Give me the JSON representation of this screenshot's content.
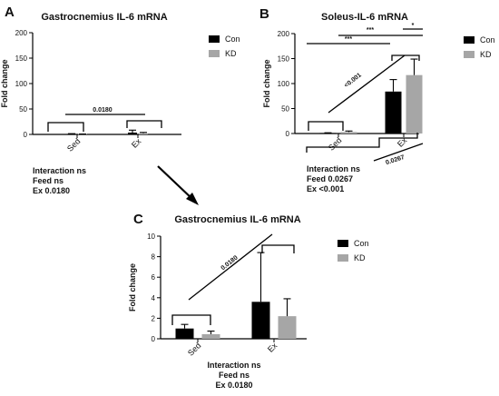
{
  "colors": {
    "con": "#000000",
    "kd": "#a6a6a6",
    "axis": "#000000"
  },
  "chart_data": [
    {
      "panel": "A",
      "type": "bar",
      "title": "Gastrocnemius IL-6 mRNA",
      "ylabel": "Fold change",
      "ylim": [
        0,
        200
      ],
      "yticks": [
        "0",
        "50",
        "100",
        "150",
        "200"
      ],
      "categories": [
        "Sed",
        "Ex"
      ],
      "legend": [
        "Con",
        "KD"
      ],
      "legend_position": "top-right",
      "series": [
        {
          "name": "Con",
          "values": [
            1,
            3.6
          ],
          "errors": [
            0.5,
            4.8
          ]
        },
        {
          "name": "KD",
          "values": [
            0.5,
            2.2
          ],
          "errors": [
            0.3,
            1.7
          ]
        }
      ],
      "annotations": {
        "ex_p": "0.0180"
      },
      "stats": [
        "Interaction ns",
        "Feed ns",
        "Ex 0.0180"
      ]
    },
    {
      "panel": "B",
      "type": "bar",
      "title": "Soleus-IL-6 mRNA",
      "ylabel": "Fold change",
      "ylim": [
        0,
        200
      ],
      "yticks": [
        "0",
        "50",
        "100",
        "150",
        "200"
      ],
      "categories": [
        "Sed",
        "Ex"
      ],
      "legend": [
        "Con",
        "KD"
      ],
      "legend_position": "top-right",
      "series": [
        {
          "name": "Con",
          "values": [
            1,
            84
          ],
          "errors": [
            0.5,
            24
          ]
        },
        {
          "name": "KD",
          "values": [
            3,
            117
          ],
          "errors": [
            2,
            32
          ]
        }
      ],
      "annotations": {
        "sig1": "***",
        "sig2": "***",
        "sig3": "*",
        "diag_p": "<0.001",
        "feed_p": "0.0267"
      },
      "stats": [
        "Interaction ns",
        "Feed 0.0267",
        "Ex <0.001"
      ]
    },
    {
      "panel": "C",
      "type": "bar",
      "title": "Gastrocnemius IL-6 mRNA",
      "ylabel": "Fold change",
      "ylim": [
        0,
        10
      ],
      "yticks": [
        "0",
        "2",
        "4",
        "6",
        "8",
        "10"
      ],
      "categories": [
        "Sed",
        "Ex"
      ],
      "legend": [
        "Con",
        "KD"
      ],
      "legend_position": "top-right",
      "series": [
        {
          "name": "Con",
          "values": [
            1.0,
            3.6
          ],
          "errors": [
            0.4,
            4.8
          ]
        },
        {
          "name": "KD",
          "values": [
            0.45,
            2.2
          ],
          "errors": [
            0.3,
            1.7
          ]
        }
      ],
      "annotations": {
        "ex_p": "0.0180"
      },
      "stats": [
        "Interaction ns",
        "Feed ns",
        "Ex 0.0180"
      ]
    }
  ]
}
